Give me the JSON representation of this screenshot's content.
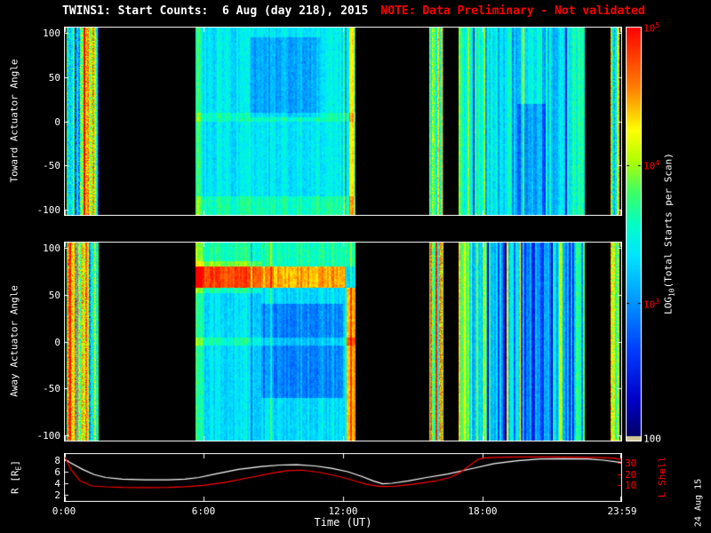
{
  "title": {
    "main": "TWINS1: Start Counts:  6 Aug (day 218), 2015",
    "note": "NOTE: Data Preliminary - Not validated"
  },
  "date_stamp": "24 Aug 15",
  "colors": {
    "background": "#000000",
    "axis": "#ffffff",
    "note_text": "#ff0000",
    "l_shell_line": "#ff0000",
    "r_line": "#ffffff",
    "colorbar_tick_text": "#ff0000"
  },
  "panels": {
    "toward": {
      "ylabel": "Toward Actuator Angle",
      "yticks": [
        "100",
        "50",
        "0",
        "-50",
        "-100"
      ]
    },
    "away": {
      "ylabel": "Away Actuator Angle",
      "yticks": [
        "100",
        "50",
        "0",
        "-50",
        "-100"
      ]
    },
    "bottom": {
      "left_label": {
        "pre": "R [R",
        "sub": "E",
        "post": "]"
      },
      "left_ticks": [
        "8",
        "6",
        "4",
        "2"
      ],
      "right_label": "L Shell",
      "right_ticks": [
        "30",
        "20",
        "10"
      ],
      "xlabel": "Time (UT)",
      "xticks": [
        "0:00",
        "6:00",
        "12:00",
        "18:00",
        "23:59"
      ]
    }
  },
  "colorbar": {
    "label": {
      "pre": "LOG",
      "sub": "10",
      "post": "(Total Starts per Scan)"
    },
    "ticks": [
      {
        "base": "10",
        "exp": "5"
      },
      {
        "base": "10",
        "exp": "4"
      },
      {
        "base": "10",
        "exp": "3"
      },
      {
        "base": "100",
        "exp": ""
      }
    ]
  },
  "chart_data": {
    "type": "heatmap",
    "title": "TWINS1: Start Counts: 6 Aug (day 218), 2015",
    "x_axis": {
      "label": "Time (UT)",
      "range_hours": [
        0,
        24
      ],
      "tick_hours": [
        0,
        6,
        12,
        18,
        24
      ],
      "tick_labels": [
        "0:00",
        "6:00",
        "12:00",
        "18:00",
        "23:59"
      ]
    },
    "colorbar_meta": {
      "label": "LOG10(Total Starts per Scan)",
      "scale": "log",
      "range": [
        100,
        100000
      ],
      "tick_values": [
        100000,
        10000,
        1000,
        100
      ]
    },
    "colormap": [
      {
        "v": 0.0,
        "rgb": [
          0,
          0,
          90
        ]
      },
      {
        "v": 0.1,
        "rgb": [
          0,
          0,
          200
        ]
      },
      {
        "v": 0.22,
        "rgb": [
          0,
          60,
          255
        ]
      },
      {
        "v": 0.35,
        "rgb": [
          0,
          160,
          255
        ]
      },
      {
        "v": 0.45,
        "rgb": [
          0,
          230,
          255
        ]
      },
      {
        "v": 0.52,
        "rgb": [
          0,
          255,
          200
        ]
      },
      {
        "v": 0.6,
        "rgb": [
          60,
          255,
          100
        ]
      },
      {
        "v": 0.68,
        "rgb": [
          180,
          255,
          0
        ]
      },
      {
        "v": 0.75,
        "rgb": [
          255,
          255,
          0
        ]
      },
      {
        "v": 0.85,
        "rgb": [
          255,
          130,
          0
        ]
      },
      {
        "v": 1.0,
        "rgb": [
          255,
          0,
          0
        ]
      }
    ],
    "heatmaps": [
      {
        "name": "toward_actuator_angle",
        "ylabel": "Toward Actuator Angle",
        "ylim": [
          -107,
          107
        ],
        "yticks": [
          100,
          50,
          0,
          -50,
          -100
        ],
        "segments": [
          {
            "t": [
              0.1,
              1.5
            ],
            "base": 0.62,
            "col_noise": 0.25,
            "row_noise": 0.22,
            "spike_prob": 0.3,
            "spike_amp": 0.3
          },
          {
            "t": [
              5.65,
              12.55
            ],
            "base": 0.46,
            "col_noise": 0.05,
            "row_noise": 0.05,
            "spike_prob": 0.04,
            "spike_amp": 0.12,
            "features": [
              {
                "t": [
                  12.25,
                  12.5
                ],
                "a": [
                  -107,
                  107
                ],
                "delta": 0.33
              },
              {
                "t": [
                  5.65,
                  5.9
                ],
                "a": [
                  -107,
                  107
                ],
                "delta": 0.12
              },
              {
                "t": [
                  8.0,
                  11.0
                ],
                "a": [
                  5,
                  95
                ],
                "delta": -0.09
              },
              {
                "t": [
                  5.65,
                  12.55
                ],
                "a": [
                  0,
                  10
                ],
                "delta": 0.07
              },
              {
                "t": [
                  5.65,
                  12.55
                ],
                "a": [
                  -107,
                  -85
                ],
                "delta": 0.08
              }
            ]
          },
          {
            "t": [
              15.7,
              16.3
            ],
            "base": 0.68,
            "col_noise": 0.2,
            "row_noise": 0.16,
            "spike_prob": 0.25,
            "spike_amp": 0.25
          },
          {
            "t": [
              16.95,
              22.4
            ],
            "base": 0.43,
            "col_noise": 0.1,
            "row_noise": 0.06,
            "spike_prob": 0.15,
            "spike_amp": 0.22,
            "features": [
              {
                "t": [
                  19.5,
                  20.7
                ],
                "a": [
                  -107,
                  20
                ],
                "delta": -0.12
              },
              {
                "t": [
                  16.95,
                  17.2
                ],
                "a": [
                  -107,
                  107
                ],
                "delta": 0.15
              },
              {
                "t": [
                  21.6,
                  22.4
                ],
                "a": [
                  -107,
                  107
                ],
                "delta": 0.08
              }
            ]
          },
          {
            "t": [
              23.5,
              23.9
            ],
            "base": 0.6,
            "col_noise": 0.22,
            "row_noise": 0.18,
            "spike_prob": 0.3,
            "spike_amp": 0.25
          }
        ]
      },
      {
        "name": "away_actuator_angle",
        "ylabel": "Away Actuator Angle",
        "ylim": [
          -107,
          107
        ],
        "yticks": [
          100,
          50,
          0,
          -50,
          -100
        ],
        "segments": [
          {
            "t": [
              0.1,
              1.5
            ],
            "base": 0.66,
            "col_noise": 0.25,
            "row_noise": 0.22,
            "spike_prob": 0.3,
            "spike_amp": 0.3
          },
          {
            "t": [
              5.65,
              12.55
            ],
            "base": 0.44,
            "col_noise": 0.05,
            "row_noise": 0.05,
            "spike_prob": 0.04,
            "spike_amp": 0.12,
            "features": [
              {
                "t": [
                  5.65,
                  12.1
                ],
                "a": [
                  58,
                  80
                ],
                "delta": 0.38
              },
              {
                "t": [
                  5.65,
                  8.5
                ],
                "a": [
                  52,
                  86
                ],
                "delta": 0.1
              },
              {
                "t": [
                  5.65,
                  12.55
                ],
                "a": [
                  80,
                  107
                ],
                "delta": 0.1
              },
              {
                "t": [
                  8.5,
                  12.0
                ],
                "a": [
                  -60,
                  40
                ],
                "delta": -0.12
              },
              {
                "t": [
                  12.15,
                  12.55
                ],
                "a": [
                  -107,
                  58
                ],
                "delta": 0.38
              },
              {
                "t": [
                  5.65,
                  12.55
                ],
                "a": [
                  -4,
                  4
                ],
                "delta": 0.09
              },
              {
                "t": [
                  5.65,
                  5.95
                ],
                "a": [
                  -107,
                  107
                ],
                "delta": 0.12
              }
            ]
          },
          {
            "t": [
              15.7,
              16.3
            ],
            "base": 0.7,
            "col_noise": 0.2,
            "row_noise": 0.16,
            "spike_prob": 0.3,
            "spike_amp": 0.25
          },
          {
            "t": [
              16.95,
              22.4
            ],
            "base": 0.38,
            "col_noise": 0.12,
            "row_noise": 0.06,
            "spike_prob": 0.25,
            "spike_amp": 0.3,
            "features": [
              {
                "t": [
                  16.95,
                  17.55
                ],
                "a": [
                  -107,
                  107
                ],
                "delta": 0.3
              },
              {
                "t": [
                  18.0,
                  18.15
                ],
                "a": [
                  -107,
                  107
                ],
                "delta": 0.25
              },
              {
                "t": [
                  19.6,
                  20.8
                ],
                "a": [
                  -107,
                  107
                ],
                "delta": -0.1
              },
              {
                "t": [
                  21.3,
                  21.45
                ],
                "a": [
                  -107,
                  107
                ],
                "delta": 0.22
              },
              {
                "t": [
                  21.9,
                  22.4
                ],
                "a": [
                  -107,
                  107
                ],
                "delta": 0.1
              }
            ]
          },
          {
            "t": [
              23.5,
              23.9
            ],
            "base": 0.62,
            "col_noise": 0.22,
            "row_noise": 0.18,
            "spike_prob": 0.3,
            "spike_amp": 0.25
          }
        ]
      }
    ],
    "line_plot": {
      "series": [
        {
          "name": "R [RE]",
          "color": "#ffffff",
          "axis": "left",
          "axis_ticks": [
            8,
            6,
            4,
            2
          ],
          "points": [
            [
              0,
              8.1
            ],
            [
              0.3,
              7.5
            ],
            [
              0.8,
              6.4
            ],
            [
              1.3,
              5.5
            ],
            [
              1.8,
              5.0
            ],
            [
              2.5,
              4.7
            ],
            [
              3.5,
              4.6
            ],
            [
              4.5,
              4.6
            ],
            [
              5.2,
              4.7
            ],
            [
              5.8,
              5.0
            ],
            [
              6.5,
              5.6
            ],
            [
              7.5,
              6.4
            ],
            [
              8.5,
              6.9
            ],
            [
              9.3,
              7.15
            ],
            [
              10,
              7.2
            ],
            [
              10.8,
              7.0
            ],
            [
              11.5,
              6.6
            ],
            [
              12.2,
              6.0
            ],
            [
              12.8,
              5.2
            ],
            [
              13.3,
              4.4
            ],
            [
              13.7,
              3.9
            ],
            [
              14.1,
              4.0
            ],
            [
              14.8,
              4.4
            ],
            [
              15.6,
              5.0
            ],
            [
              16.5,
              5.6
            ],
            [
              17.5,
              6.5
            ],
            [
              18.5,
              7.4
            ],
            [
              19.5,
              7.9
            ],
            [
              20.5,
              8.2
            ],
            [
              21.5,
              8.25
            ],
            [
              22.5,
              8.2
            ],
            [
              23.2,
              8.0
            ],
            [
              24,
              7.6
            ]
          ]
        },
        {
          "name": "L Shell",
          "color": "#ff0000",
          "axis": "right",
          "axis_ticks": [
            30,
            20,
            10
          ],
          "points": [
            [
              0,
              35
            ],
            [
              0.3,
              24
            ],
            [
              0.7,
              14
            ],
            [
              1.2,
              9.5
            ],
            [
              1.8,
              8.7
            ],
            [
              2.5,
              8.2
            ],
            [
              3.5,
              8.0
            ],
            [
              4.5,
              8.2
            ],
            [
              5.2,
              8.8
            ],
            [
              6,
              10
            ],
            [
              7,
              13
            ],
            [
              8,
              17
            ],
            [
              9,
              21
            ],
            [
              9.6,
              23
            ],
            [
              10.2,
              23.5
            ],
            [
              11,
              21.5
            ],
            [
              11.8,
              18
            ],
            [
              12.5,
              14
            ],
            [
              13,
              11
            ],
            [
              13.6,
              9
            ],
            [
              14.2,
              9.2
            ],
            [
              15,
              11
            ],
            [
              16,
              14
            ],
            [
              16.6,
              17
            ],
            [
              17,
              21
            ],
            [
              17.4,
              27
            ],
            [
              17.8,
              33
            ],
            [
              18.1,
              34.5
            ],
            [
              19,
              35
            ],
            [
              20,
              35.2
            ],
            [
              21,
              35.2
            ],
            [
              22,
              35
            ],
            [
              23,
              34.6
            ],
            [
              23.6,
              34.2
            ],
            [
              24,
              33
            ]
          ]
        }
      ]
    }
  }
}
